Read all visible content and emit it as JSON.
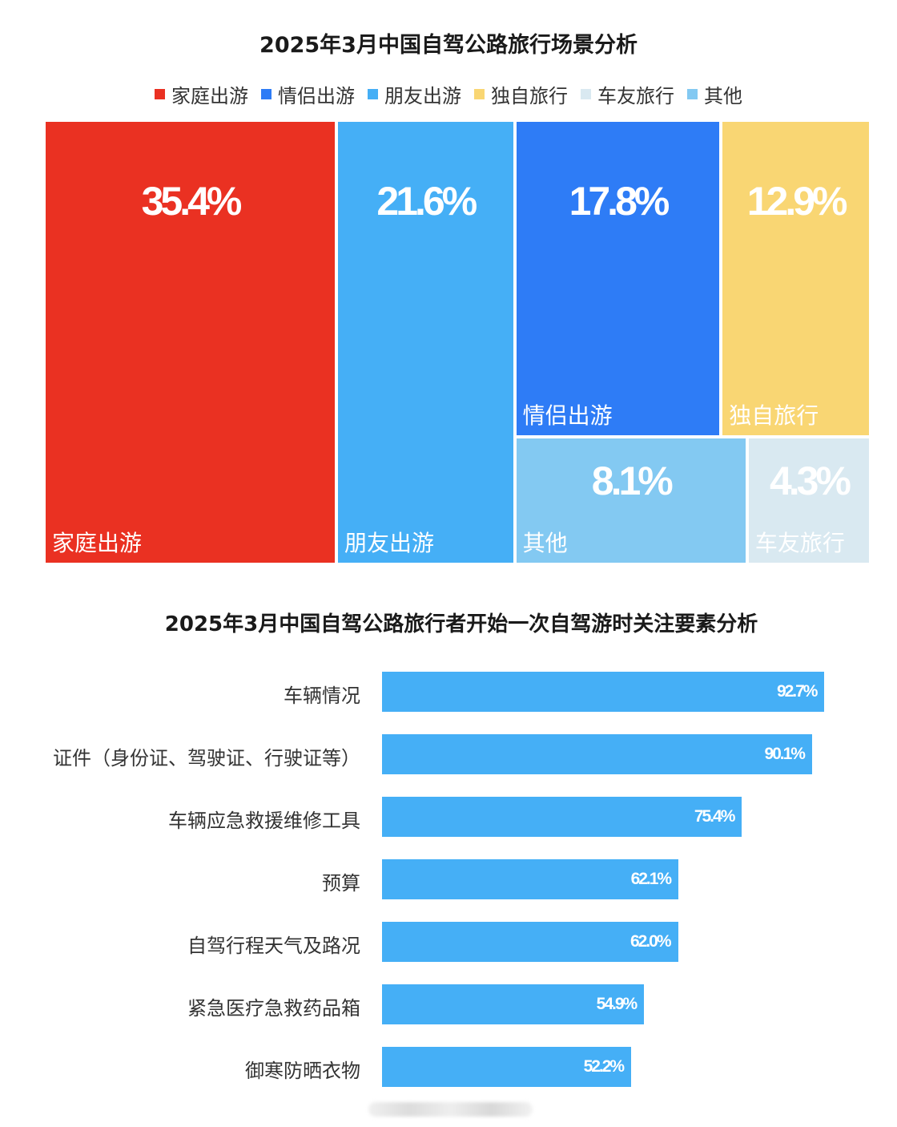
{
  "chart_data": [
    {
      "type": "treemap",
      "title": "2025年3月中国自驾公路旅行场景分析",
      "legend": [
        "家庭出游",
        "情侣出游",
        "朋友出游",
        "独自旅行",
        "车友旅行",
        "其他"
      ],
      "legend_placement": "top-center",
      "categories": [
        "家庭出游",
        "朋友出游",
        "情侣出游",
        "独自旅行",
        "其他",
        "车友旅行"
      ],
      "values": [
        35.4,
        21.6,
        17.8,
        12.9,
        8.1,
        4.3
      ],
      "value_labels": [
        "35.4%",
        "21.6%",
        "17.8%",
        "12.9%",
        "8.1%",
        "4.3%"
      ],
      "colors": [
        "#ea3122",
        "#45aff6",
        "#2e7cf6",
        "#f9d673",
        "#83c9f2",
        "#d9e9f1"
      ],
      "legend_colors": [
        "#ea3122",
        "#2e7cf6",
        "#45aff6",
        "#f9d673",
        "#d9e9f1",
        "#83c9f2"
      ]
    },
    {
      "type": "bar",
      "orientation": "horizontal",
      "title": "2025年3月中国自驾公路旅行者开始一次自驾游时关注要素分析",
      "categories": [
        "车辆情况",
        "证件（身份证、驾驶证、行驶证等）",
        "车辆应急救援维修工具",
        "预算",
        "自驾行程天气及路况",
        "紧急医疗急救药品箱",
        "御寒防晒衣物"
      ],
      "values": [
        92.7,
        90.1,
        75.4,
        62.1,
        62.0,
        54.9,
        52.2
      ],
      "value_labels": [
        "92.7%",
        "90.1%",
        "75.4%",
        "62.1%",
        "62.0%",
        "54.9%",
        "52.2%"
      ],
      "color": "#45aff6",
      "grid": false
    }
  ]
}
